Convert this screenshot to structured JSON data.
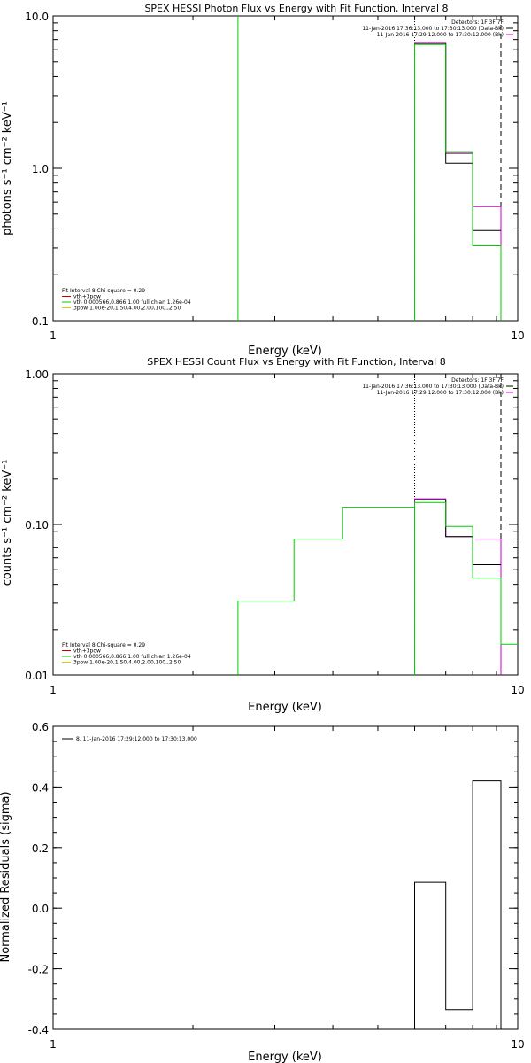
{
  "chart_data": [
    {
      "type": "line",
      "title": "SPEX HESSI Photon Flux vs Energy with Fit Function, Interval 8",
      "xlabel": "Energy (keV)",
      "ylabel": "photons s⁻¹ cm⁻² keV⁻¹",
      "x_scale": "log",
      "y_scale": "log",
      "xlim": [
        1,
        10
      ],
      "ylim": [
        0.1,
        10.0
      ],
      "x_ticks": [
        {
          "v": 1,
          "label": "1"
        },
        {
          "v": 10,
          "label": "10"
        }
      ],
      "y_ticks": [
        {
          "v": 0.1,
          "label": "0.1"
        },
        {
          "v": 1,
          "label": "1.0"
        },
        {
          "v": 10,
          "label": "10.0"
        }
      ],
      "header_lines": [
        "Detectors: 1F 3F 7F",
        "11-Jan-2016 17:36:13.000 to 17:30:13.000 (Data-Bk)",
        "11-Jan-2016 17:29:12.000 to 17:30:12.000 (Bk)"
      ],
      "header_swatch_colors": [
        "#000000",
        "#cc00cc"
      ],
      "legend": [
        {
          "text": "Fit Interval 8   Chi-square = 0.29",
          "color": null
        },
        {
          "text": "vth+3pow",
          "color": "#cc0000"
        },
        {
          "text": "vth 0.000566,0.866,1.00  full chian 1.26e-04",
          "color": "#00cc00"
        },
        {
          "text": "3pow 1.00e-20,1.50,4.00,2.00,100.,2.50",
          "color": "#ddcc00"
        }
      ],
      "vlines": [
        {
          "x": 6.0,
          "color": "#000000",
          "style": "dotted"
        },
        {
          "x": 9.2,
          "color": "#000000",
          "style": "dashed"
        }
      ],
      "series": [
        {
          "color": "#00cc00",
          "x": [
            2.5,
            2.5
          ],
          "y": [
            0.1,
            10.0
          ]
        },
        {
          "color": "#cc00cc",
          "x": [
            6.0,
            6.0,
            7.0,
            7.0,
            8.0,
            8.0,
            9.2,
            9.2
          ],
          "y": [
            0.1,
            6.7,
            6.7,
            1.25,
            1.25,
            0.56,
            0.56,
            0.1
          ]
        },
        {
          "color": "#000000",
          "x": [
            6.0,
            7.0,
            7.0,
            8.0,
            8.0,
            9.2
          ],
          "y": [
            6.6,
            6.6,
            1.08,
            1.08,
            0.39,
            0.39
          ]
        },
        {
          "color": "#00cc00",
          "x": [
            6.0,
            6.0,
            7.0,
            7.0,
            8.0,
            8.0,
            9.2,
            9.2
          ],
          "y": [
            0.1,
            6.5,
            6.5,
            1.27,
            1.27,
            0.31,
            0.31,
            0.1
          ]
        }
      ]
    },
    {
      "type": "line",
      "title": "SPEX HESSI Count Flux vs Energy with Fit Function, Interval 8",
      "xlabel": "Energy (keV)",
      "ylabel": "counts s⁻¹ cm⁻² keV⁻¹",
      "x_scale": "log",
      "y_scale": "log",
      "xlim": [
        1,
        10
      ],
      "ylim": [
        0.01,
        1.0
      ],
      "x_ticks": [
        {
          "v": 1,
          "label": "1"
        },
        {
          "v": 10,
          "label": "10"
        }
      ],
      "y_ticks": [
        {
          "v": 0.01,
          "label": "0.01"
        },
        {
          "v": 0.1,
          "label": "0.10"
        },
        {
          "v": 1,
          "label": "1.00"
        }
      ],
      "header_lines": [
        "Detectors: 1F 3F 7F",
        "11-Jan-2016 17:36:13.000 to 17:30:13.000 (Data-Bk)",
        "11-Jan-2016 17:29:12.000 to 17:30:12.000 (Bk)"
      ],
      "header_swatch_colors": [
        "#000000",
        "#cc00cc"
      ],
      "legend": [
        {
          "text": "Fit Interval 8   Chi-square = 0.29",
          "color": null
        },
        {
          "text": "vth+3pow",
          "color": "#cc0000"
        },
        {
          "text": "vth 0.000566,0.866,1.00  full chian 1.26e-04",
          "color": "#00cc00"
        },
        {
          "text": "3pow 1.00e-20,1.50,4.00,2.00,100.,2.50",
          "color": "#ddcc00"
        }
      ],
      "vlines": [
        {
          "x": 6.0,
          "color": "#000000",
          "style": "dotted"
        },
        {
          "x": 9.2,
          "color": "#000000",
          "style": "dashed"
        }
      ],
      "series": [
        {
          "color": "#00cc00",
          "x": [
            2.5,
            2.5,
            3.3,
            3.3,
            4.2,
            4.2,
            5.2,
            5.2,
            6.0
          ],
          "y": [
            0.01,
            0.031,
            0.031,
            0.08,
            0.08,
            0.13,
            0.13,
            0.13,
            0.13
          ]
        },
        {
          "color": "#cc00cc",
          "x": [
            6.0,
            6.0,
            7.0,
            7.0,
            8.0,
            8.0,
            9.2,
            9.2
          ],
          "y": [
            0.01,
            0.148,
            0.148,
            0.083,
            0.083,
            0.08,
            0.08,
            0.01
          ]
        },
        {
          "color": "#000000",
          "x": [
            6.0,
            7.0,
            7.0,
            8.0,
            8.0,
            9.2
          ],
          "y": [
            0.146,
            0.146,
            0.083,
            0.083,
            0.054,
            0.054
          ]
        },
        {
          "color": "#00cc00",
          "x": [
            6.0,
            6.0,
            7.0,
            7.0,
            8.0,
            8.0,
            9.2,
            9.2,
            10.0
          ],
          "y": [
            0.01,
            0.14,
            0.14,
            0.097,
            0.097,
            0.044,
            0.044,
            0.016,
            0.016
          ]
        }
      ]
    },
    {
      "type": "line",
      "title": "",
      "xlabel": "Energy (keV)",
      "ylabel": "Normalized Residuals (sigma)",
      "x_scale": "log",
      "y_scale": "linear",
      "xlim": [
        1,
        10
      ],
      "ylim": [
        -0.4,
        0.6
      ],
      "x_ticks": [
        {
          "v": 1,
          "label": "1"
        },
        {
          "v": 10,
          "label": "10"
        }
      ],
      "y_ticks": [
        {
          "v": -0.4,
          "label": "-0.4"
        },
        {
          "v": -0.2,
          "label": "-0.2"
        },
        {
          "v": 0.0,
          "label": "0.0"
        },
        {
          "v": 0.2,
          "label": "0.2"
        },
        {
          "v": 0.4,
          "label": "0.4"
        },
        {
          "v": 0.6,
          "label": "0.6"
        }
      ],
      "header_lines": [],
      "legend": [
        {
          "text": "8. 11-Jan-2016 17:29:12.000 to 17:30:13.000",
          "color": "#000000"
        }
      ],
      "vlines": [],
      "series": [
        {
          "color": "#000000",
          "x": [
            6.0,
            6.0,
            7.0,
            7.0,
            8.0,
            8.0,
            9.2,
            9.2
          ],
          "y": [
            -0.4,
            0.085,
            0.085,
            -0.335,
            -0.335,
            0.42,
            0.42,
            -0.4
          ]
        }
      ]
    }
  ]
}
